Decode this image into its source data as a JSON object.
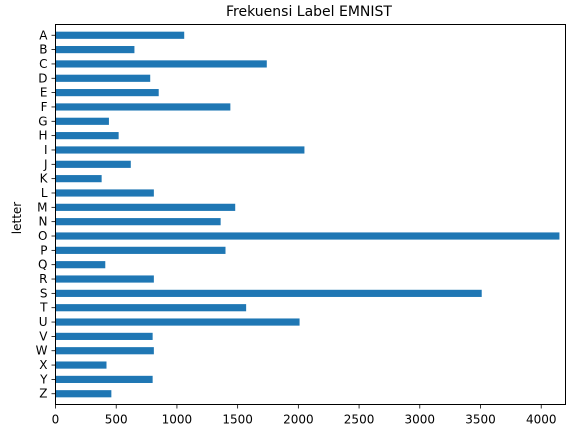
{
  "chart_data": {
    "type": "bar",
    "orientation": "horizontal",
    "title": "Frekuensi Label EMNIST",
    "xlabel": "",
    "ylabel": "letter",
    "categories": [
      "A",
      "B",
      "C",
      "D",
      "E",
      "F",
      "G",
      "H",
      "I",
      "J",
      "K",
      "L",
      "M",
      "N",
      "O",
      "P",
      "Q",
      "R",
      "S",
      "T",
      "U",
      "V",
      "W",
      "X",
      "Y",
      "Z"
    ],
    "values": [
      1060,
      650,
      1740,
      780,
      850,
      1440,
      440,
      520,
      2050,
      620,
      380,
      810,
      1480,
      1360,
      4150,
      1400,
      410,
      810,
      3510,
      1570,
      2010,
      800,
      810,
      420,
      800,
      460
    ],
    "xlim": [
      0,
      4200
    ],
    "xticks": [
      0,
      500,
      1000,
      1500,
      2000,
      2500,
      3000,
      3500,
      4000
    ],
    "bar_color": "#1f77b4",
    "grid": false,
    "legend": "none"
  }
}
